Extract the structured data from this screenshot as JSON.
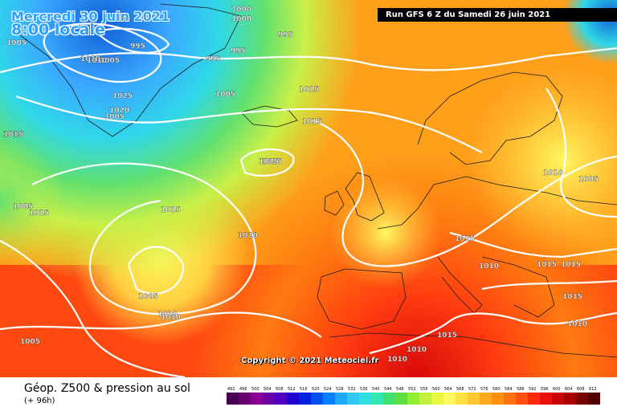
{
  "map": {
    "valid_date": "Mercredi 30 juin 2021",
    "valid_time": "8:00 locale",
    "run_info": "Run GFS 6 Z du Samedi 26 juin 2021",
    "copyright": "Copyright © 2021 Meteociel.fr",
    "product_title": "Géop. Z500 & pression au sol",
    "forecast_offset": "(+ 96h)",
    "colors": {
      "deep_low": "#1060d8",
      "low_blue": "#3aa8ff",
      "cyan": "#30d8e8",
      "green": "#60e070",
      "lime": "#c8f048",
      "yellow": "#fff860",
      "light_orange": "#ffd040",
      "orange": "#ff9f1a",
      "deep_orange": "#ff7a10",
      "red": "#ff3a10",
      "dark_red": "#d80808",
      "isobar": "#ffffff",
      "land_border": "#1a1a1a"
    },
    "isobar_labels": [
      {
        "text": "1000"
      },
      {
        "text": "1005"
      },
      {
        "text": "995"
      },
      {
        "text": "1000"
      },
      {
        "text": "995"
      },
      {
        "text": "1005"
      },
      {
        "text": "995"
      },
      {
        "text": "995"
      },
      {
        "text": "1010"
      },
      {
        "text": "1015"
      },
      {
        "text": "1025"
      },
      {
        "text": "1020"
      },
      {
        "text": "1010"
      },
      {
        "text": "1005"
      },
      {
        "text": "1015"
      },
      {
        "text": "1005"
      },
      {
        "text": "1010"
      },
      {
        "text": "1025"
      },
      {
        "text": "1015"
      },
      {
        "text": "1020"
      },
      {
        "text": "1015"
      },
      {
        "text": "1005"
      },
      {
        "text": "1010"
      },
      {
        "text": "1025"
      },
      {
        "text": "1015"
      },
      {
        "text": "1010"
      },
      {
        "text": "1005"
      },
      {
        "text": "1015"
      },
      {
        "text": "1015"
      },
      {
        "text": "1015"
      },
      {
        "text": "1010"
      },
      {
        "text": "1015"
      },
      {
        "text": "1010"
      },
      {
        "text": "1010"
      },
      {
        "text": "1010"
      },
      {
        "text": "1015"
      },
      {
        "text": "1005"
      },
      {
        "text": "1015"
      },
      {
        "text": "1010"
      },
      {
        "text": "1020"
      },
      {
        "text": "1005"
      }
    ]
  },
  "legend": {
    "values": [
      "492",
      "496",
      "500",
      "504",
      "508",
      "512",
      "516",
      "520",
      "524",
      "528",
      "532",
      "536",
      "540",
      "544",
      "548",
      "552",
      "556",
      "560",
      "564",
      "568",
      "572",
      "576",
      "580",
      "584",
      "588",
      "592",
      "596",
      "600",
      "604",
      "608",
      "612"
    ],
    "colors": [
      "#4a0050",
      "#6a0070",
      "#8a0090",
      "#6a00a8",
      "#5000c0",
      "#2000d0",
      "#0020e0",
      "#0050f0",
      "#0080ff",
      "#20a8ff",
      "#30c8f0",
      "#30e0e0",
      "#30e8b0",
      "#40e070",
      "#60e040",
      "#90f030",
      "#c0f040",
      "#e8f840",
      "#fff860",
      "#ffe040",
      "#ffc830",
      "#ffa820",
      "#ff9010",
      "#ff7010",
      "#ff5010",
      "#ff2808",
      "#e81008",
      "#c80808",
      "#a80000",
      "#780000",
      "#500000"
    ]
  }
}
